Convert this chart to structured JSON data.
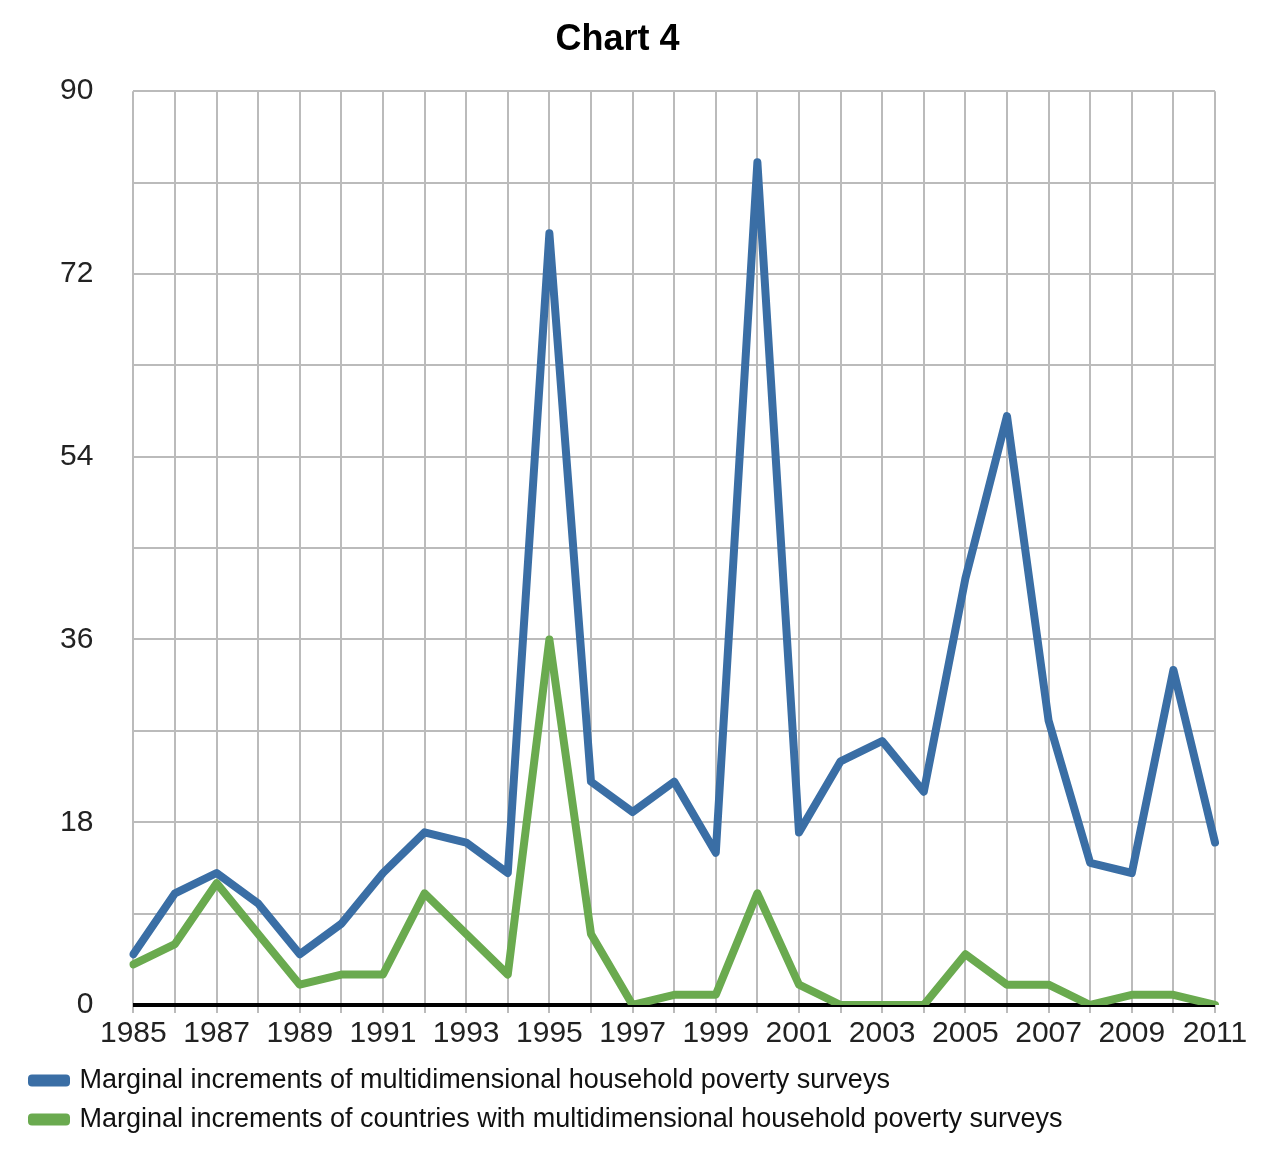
{
  "chart_data": {
    "type": "line",
    "title": "Chart 4",
    "categories": [
      "1985",
      null,
      "1987",
      null,
      "1989",
      null,
      "1991",
      null,
      "1993",
      null,
      "1995",
      null,
      "1997",
      null,
      "1999",
      null,
      "2001",
      null,
      "2003",
      null,
      "2005",
      null,
      "2007",
      null,
      "2009",
      null,
      "2011"
    ],
    "series": [
      {
        "name": "Marginal increments of multidimensional household poverty surveys",
        "color": "#3a6ea5",
        "values": [
          5,
          11,
          13,
          10,
          5,
          8,
          13,
          17,
          16,
          13,
          76,
          22,
          19,
          22,
          15,
          83,
          17,
          24,
          26,
          21,
          42,
          58,
          28,
          14,
          13,
          33,
          16
        ]
      },
      {
        "name": "Marginal increments of countries with multidimensional household poverty surveys",
        "color": "#6aaa4f",
        "values": [
          4,
          6,
          12,
          7,
          2,
          3,
          3,
          11,
          7,
          3,
          36,
          7,
          0,
          1,
          1,
          11,
          2,
          0,
          0,
          0,
          5,
          2,
          2,
          0,
          1,
          1,
          0
        ]
      }
    ],
    "ylim": [
      0,
      90
    ],
    "yticks": [
      0,
      {
        "value": 9,
        "label": null
      },
      18,
      {
        "value": 27,
        "label": null
      },
      36,
      {
        "value": 45,
        "label": null
      },
      54,
      {
        "value": 63,
        "label": null
      },
      72,
      {
        "value": 81,
        "label": null
      },
      90
    ],
    "grid": true,
    "legend": "bottom",
    "marker": "none",
    "line_style": "solid"
  }
}
